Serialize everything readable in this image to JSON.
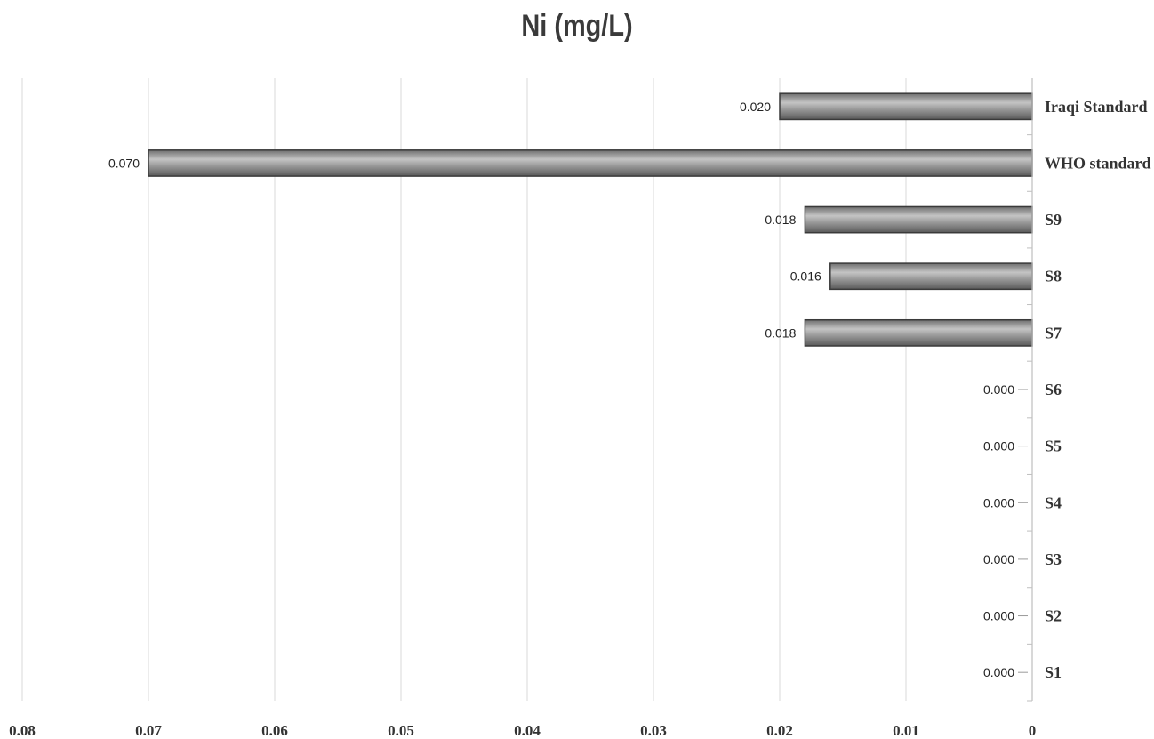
{
  "chart_data": {
    "type": "bar",
    "orientation": "horizontal",
    "title": "Ni (mg/L)",
    "categories": [
      "S1",
      "S2",
      "S3",
      "S4",
      "S5",
      "S6",
      "S7",
      "S8",
      "S9",
      "WHO standard",
      "Iraqi Standard"
    ],
    "values": [
      0.0,
      0.0,
      0.0,
      0.0,
      0.0,
      0.0,
      0.018,
      0.016,
      0.018,
      0.07,
      0.02
    ],
    "data_labels": [
      "0.000",
      "0.000",
      "0.000",
      "0.000",
      "0.000",
      "0.000",
      "0.018",
      "0.016",
      "0.018",
      "0.070",
      "0.020"
    ],
    "xlim": [
      0.08,
      0
    ],
    "x_reversed": true,
    "x_ticks": [
      "0.08",
      "0.07",
      "0.06",
      "0.05",
      "0.04",
      "0.03",
      "0.02",
      "0.01",
      "0"
    ],
    "x_tick_values": [
      0.08,
      0.07,
      0.06,
      0.05,
      0.04,
      0.03,
      0.02,
      0.01,
      0
    ],
    "category_axis_position": "right",
    "grid": true,
    "bar_color": "#8a8a8a",
    "bar_edge_color": "#3a3a3a",
    "grid_color": "#d9d9d9"
  }
}
